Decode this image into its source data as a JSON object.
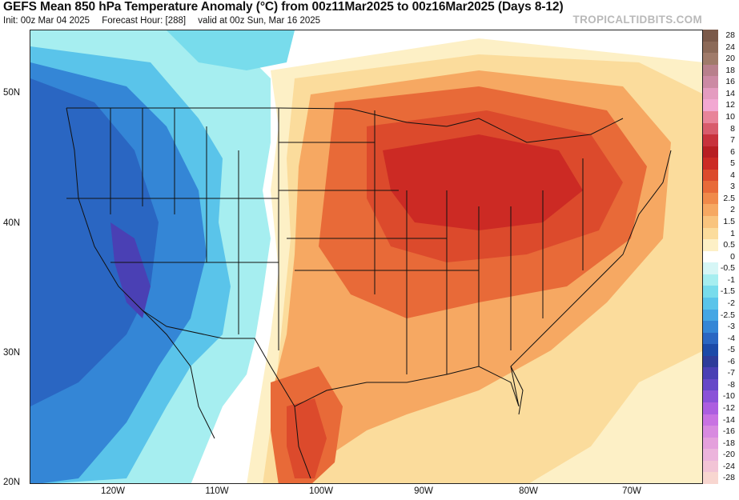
{
  "header": {
    "title": "GEFS Mean 850 hPa Temperature Anomaly (°C) from 00z11Mar2025 to 00z16Mar2025 (Days 8-12)",
    "init": "Init: 00z Mar 04 2025",
    "forecast_hour": "Forecast Hour: [288]",
    "valid": "valid at 00z Sun, Mar 16 2025",
    "brand": "TROPICALTIDBITS.COM"
  },
  "axes": {
    "lat_labels": [
      "50N",
      "40N",
      "30N",
      "20N"
    ],
    "lon_labels": [
      "120W",
      "110W",
      "100W",
      "90W",
      "80W",
      "70W"
    ]
  },
  "legend": {
    "entries": [
      {
        "label": "28",
        "color": "#7b5a4a"
      },
      {
        "label": "24",
        "color": "#8c6a58"
      },
      {
        "label": "20",
        "color": "#a07b6a"
      },
      {
        "label": "18",
        "color": "#b8808c"
      },
      {
        "label": "16",
        "color": "#cc8aa4"
      },
      {
        "label": "14",
        "color": "#e49cc0"
      },
      {
        "label": "12",
        "color": "#f2a8d2"
      },
      {
        "label": "10",
        "color": "#e8849a"
      },
      {
        "label": "8",
        "color": "#d85c6c"
      },
      {
        "label": "7",
        "color": "#c8323c"
      },
      {
        "label": "6",
        "color": "#b81e22"
      },
      {
        "label": "5",
        "color": "#cc2a24"
      },
      {
        "label": "4",
        "color": "#dc4a2c"
      },
      {
        "label": "3",
        "color": "#e86a38"
      },
      {
        "label": "2.5",
        "color": "#f08a4a"
      },
      {
        "label": "2",
        "color": "#f6a862"
      },
      {
        "label": "1.5",
        "color": "#f9c47e"
      },
      {
        "label": "1",
        "color": "#fbdc9c"
      },
      {
        "label": "0.5",
        "color": "#fdf0c6"
      },
      {
        "label": "0",
        "color": "#ffffff"
      },
      {
        "label": "-0.5",
        "color": "#d6f6f6"
      },
      {
        "label": "-1",
        "color": "#a6eef0"
      },
      {
        "label": "-1.5",
        "color": "#78dcec"
      },
      {
        "label": "-2",
        "color": "#5ac4ea"
      },
      {
        "label": "-2.5",
        "color": "#44a6e4"
      },
      {
        "label": "-3",
        "color": "#3486d6"
      },
      {
        "label": "-4",
        "color": "#2a66c2"
      },
      {
        "label": "-5",
        "color": "#1c4aa8"
      },
      {
        "label": "-6",
        "color": "#2e3c9a"
      },
      {
        "label": "-7",
        "color": "#4a40b4"
      },
      {
        "label": "-8",
        "color": "#6648c8"
      },
      {
        "label": "-10",
        "color": "#8a52d8"
      },
      {
        "label": "-12",
        "color": "#ac5ee0"
      },
      {
        "label": "-14",
        "color": "#c872e2"
      },
      {
        "label": "-16",
        "color": "#d88ae0"
      },
      {
        "label": "-18",
        "color": "#e4a0dc"
      },
      {
        "label": "-20",
        "color": "#ecb4dc"
      },
      {
        "label": "-24",
        "color": "#f2c4d6"
      },
      {
        "label": "-28",
        "color": "#f8d6d0"
      }
    ]
  }
}
